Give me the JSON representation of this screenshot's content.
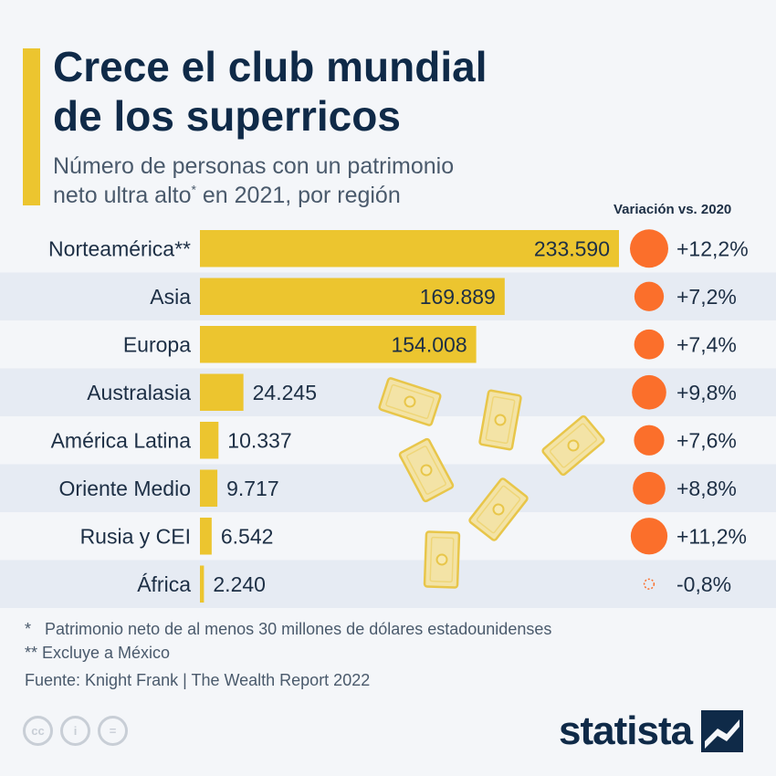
{
  "title": "Crece el club mundial de los superricos",
  "title_lines": [
    "Crece el club mundial",
    "de los superricos"
  ],
  "subtitle_lines": [
    "Número de personas con un patrimonio",
    "neto ultra alto"
  ],
  "subtitle_sup": "*",
  "subtitle_tail": " en 2021, por región",
  "variation_header": "Variación vs. 2020",
  "colors": {
    "bar": "#ecc52f",
    "circle": "#fb6f2b",
    "title": "#0f2a48",
    "stripe": "#e6ebf3",
    "background": "#f4f6f9"
  },
  "chart_data": {
    "type": "bar",
    "orientation": "horizontal",
    "categories": [
      "Norteamérica**",
      "Asia",
      "Europa",
      "Australasia",
      "América Latina",
      "Oriente Medio",
      "Rusia y CEI",
      "África"
    ],
    "values": [
      233590,
      169889,
      154008,
      24245,
      10337,
      9717,
      6542,
      2240
    ],
    "value_labels": [
      "233.590",
      "169.889",
      "154.008",
      "24.245",
      "10.337",
      "9.717",
      "6.542",
      "2.240"
    ],
    "variation_values": [
      12.2,
      7.2,
      7.4,
      9.8,
      7.6,
      8.8,
      11.2,
      -0.8
    ],
    "variation_labels": [
      "+12,2%",
      "+7,2%",
      "+7,4%",
      "+9,8%",
      "+7,6%",
      "+8,8%",
      "+11,2%",
      "-0,8%"
    ],
    "title": "Crece el club mundial de los superricos",
    "xlabel": "",
    "ylabel": ""
  },
  "footnotes": [
    "*   Patrimonio neto de al menos 30 millones de dólares estadounidenses",
    "** Excluye a México"
  ],
  "source": "Fuente: Knight Frank | The Wealth Report 2022",
  "brand": "statista",
  "license_icons": [
    "cc-icon",
    "attribution-icon",
    "no-derivatives-icon"
  ],
  "license_glyphs": [
    "cc",
    "i",
    "="
  ]
}
